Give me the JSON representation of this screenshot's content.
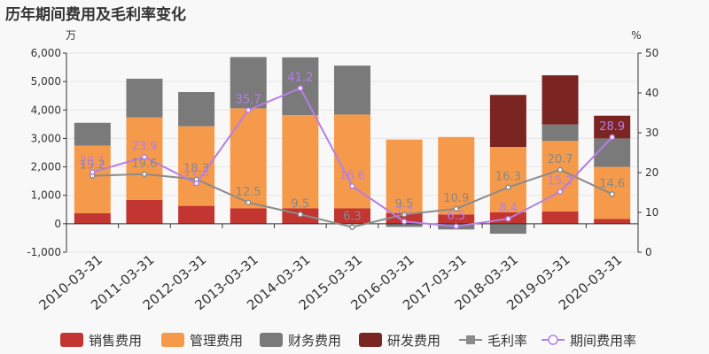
{
  "title": "历年期间费用及毛利率变化",
  "colors": {
    "sales": "#c23531",
    "admin": "#f59a4a",
    "finance": "#7a7a7a",
    "rd": "#7b2523",
    "gross_margin": "#8b8b8b",
    "period_expense": "#b57ee5",
    "axis": "#333333",
    "grid": "#e6e6e6"
  },
  "chart_data": {
    "type": "bar",
    "categories": [
      "2010-03-31",
      "2011-03-31",
      "2012-03-31",
      "2013-03-31",
      "2014-03-31",
      "2015-03-31",
      "2016-03-31",
      "2017-03-31",
      "2018-03-31",
      "2019-03-31",
      "2020-03-31"
    ],
    "left_axis": {
      "unit": "万",
      "ylim": [
        -1000,
        6000
      ],
      "ticks": [
        "-1,000",
        "0",
        "1,000",
        "2,000",
        "3,000",
        "4,000",
        "5,000",
        "6,000"
      ]
    },
    "right_axis": {
      "unit": "%",
      "ylim": [
        0,
        50
      ],
      "ticks": [
        "0",
        "10",
        "20",
        "30",
        "40",
        "50"
      ]
    },
    "stacked_series": [
      {
        "name": "销售费用",
        "color_key": "sales",
        "values": [
          370,
          840,
          630,
          540,
          540,
          540,
          380,
          330,
          400,
          430,
          170
        ]
      },
      {
        "name": "管理费用",
        "color_key": "admin",
        "values": [
          2380,
          2900,
          2800,
          3520,
          3280,
          3300,
          2580,
          2720,
          2300,
          2480,
          1830
        ]
      },
      {
        "name": "财务费用",
        "color_key": "finance",
        "values": [
          800,
          1360,
          1200,
          1800,
          2030,
          1720,
          -110,
          -200,
          -350,
          580,
          1000
        ]
      },
      {
        "name": "研发费用",
        "color_key": "rd",
        "values": [
          0,
          0,
          0,
          0,
          0,
          0,
          0,
          0,
          1830,
          1730,
          800
        ]
      }
    ],
    "line_series": [
      {
        "name": "毛利率",
        "color_key": "gross_margin",
        "values": [
          19.2,
          19.6,
          18.3,
          12.5,
          9.5,
          6.3,
          9.5,
          10.9,
          16.3,
          20.7,
          14.6
        ],
        "labels": [
          "19.2",
          "19.6",
          "18.3",
          "12.5",
          "9.5",
          "6.3",
          "9.5",
          "10.9",
          "16.3",
          "20.7",
          "14.6"
        ]
      },
      {
        "name": "期间费用率",
        "color_key": "period_expense",
        "values": [
          20.1,
          23.9,
          17.3,
          35.7,
          41.2,
          16.6,
          7.7,
          6.5,
          8.4,
          15.2,
          28.9
        ],
        "labels": [
          "20.1",
          "23.9",
          "17.3",
          "35.7",
          "41.2",
          "16.6",
          "7.7",
          "6.5",
          "8.4",
          "15.2",
          "28.9"
        ]
      }
    ],
    "legend": [
      "销售费用",
      "管理费用",
      "财务费用",
      "研发费用",
      "毛利率",
      "期间费用率"
    ],
    "legend_position": "bottom",
    "grid": true
  }
}
